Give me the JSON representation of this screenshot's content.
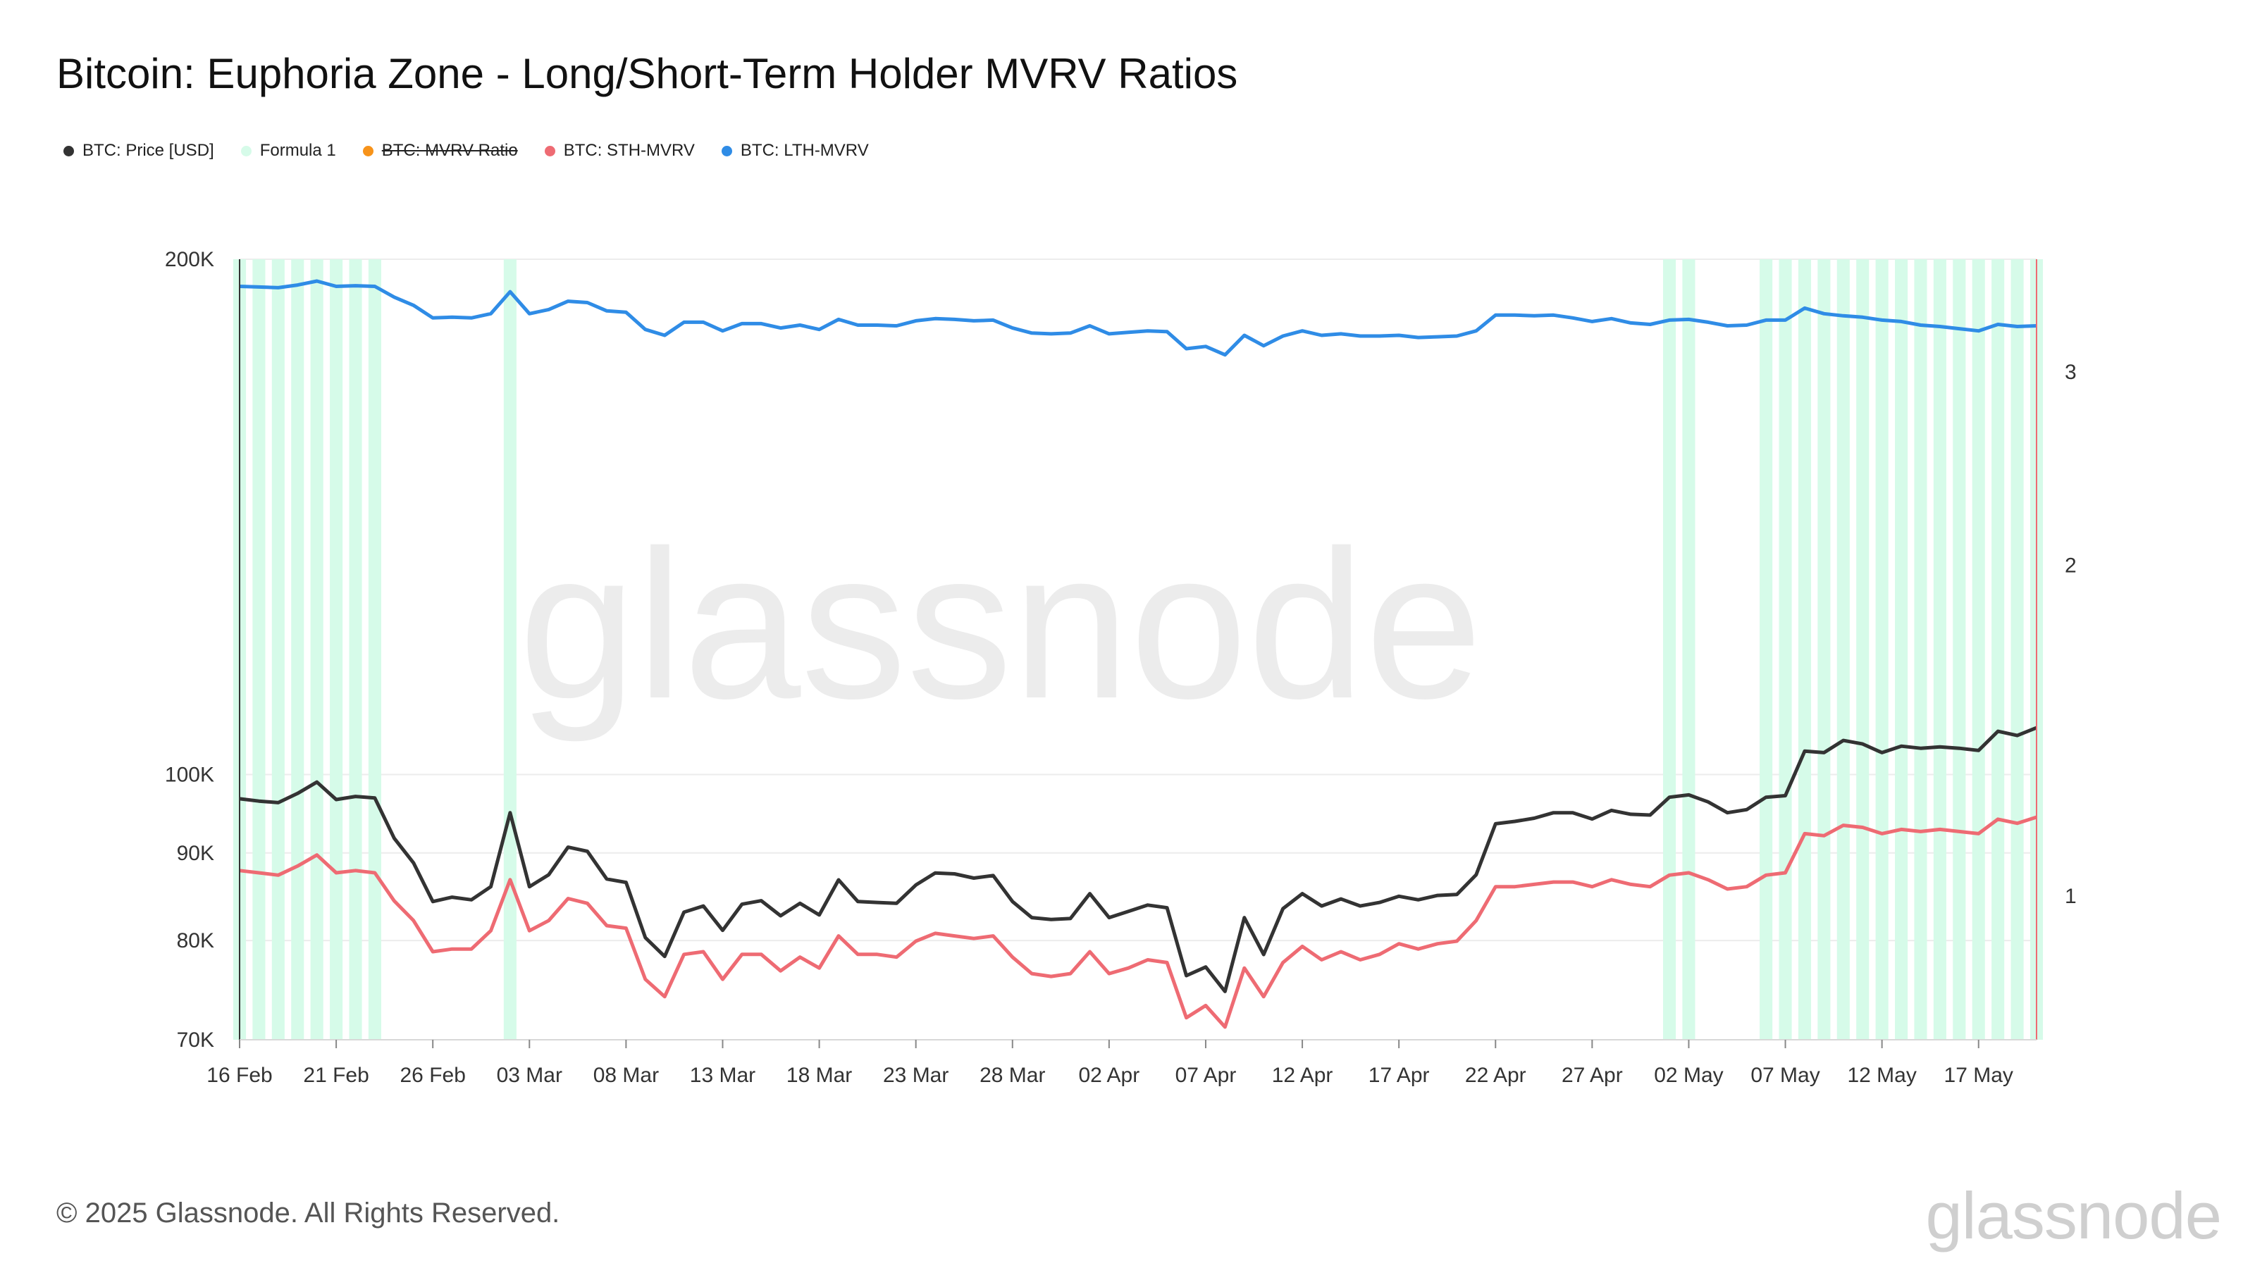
{
  "title": "Bitcoin: Euphoria Zone - Long/Short-Term Holder MVRV Ratios",
  "legend": [
    {
      "label": "BTC: Price [USD]",
      "color": "#333333",
      "struck": false
    },
    {
      "label": "Formula 1",
      "color": "#d6fbe9",
      "struck": false
    },
    {
      "label": "BTC: MVRV Ratio",
      "color": "#f7931a",
      "struck": true
    },
    {
      "label": "BTC: STH-MVRV",
      "color": "#ee6b73",
      "struck": false
    },
    {
      "label": "BTC: LTH-MVRV",
      "color": "#2f8ce6",
      "struck": false
    }
  ],
  "watermark": "glassnode",
  "footer": "© 2025 Glassnode. All Rights Reserved.",
  "brand": "glassnode",
  "chart_data": {
    "type": "line",
    "x_tick_labels": [
      "16 Feb",
      "21 Feb",
      "26 Feb",
      "03 Mar",
      "08 Mar",
      "13 Mar",
      "18 Mar",
      "23 Mar",
      "28 Mar",
      "02 Apr",
      "07 Apr",
      "12 Apr",
      "17 Apr",
      "22 Apr",
      "27 Apr",
      "02 May",
      "07 May",
      "12 May",
      "17 May"
    ],
    "x_tick_day_index": [
      0,
      5,
      10,
      15,
      20,
      25,
      30,
      35,
      40,
      45,
      50,
      55,
      60,
      65,
      70,
      75,
      80,
      85,
      90
    ],
    "x_range_days": [
      0,
      93
    ],
    "left_axis": {
      "scale": "log",
      "range": [
        70000,
        200000
      ],
      "ticks": [
        70000,
        80000,
        90000,
        100000,
        200000
      ],
      "tick_labels": [
        "70K",
        "80K",
        "90K",
        "100K",
        "200K"
      ]
    },
    "right_axis": {
      "scale": "log",
      "range": [
        0.74,
        3.8
      ],
      "ticks": [
        1,
        2,
        3
      ],
      "tick_labels": [
        "1",
        "2",
        "3"
      ]
    },
    "series": [
      {
        "name": "BTC: Price [USD]",
        "axis": "left",
        "color": "#333333",
        "values": [
          96800,
          96500,
          96300,
          97500,
          99000,
          96700,
          97100,
          96900,
          91800,
          88800,
          84300,
          84800,
          84500,
          86000,
          95000,
          86000,
          87400,
          90700,
          90200,
          86900,
          86500,
          80300,
          78300,
          83100,
          83800,
          81100,
          84000,
          84400,
          82700,
          84100,
          82800,
          86800,
          84300,
          84200,
          84100,
          86200,
          87600,
          87500,
          87000,
          87300,
          84300,
          82500,
          82300,
          82400,
          85200,
          82500,
          83200,
          83900,
          83600,
          76300,
          77200,
          74700,
          82500,
          78500,
          83500,
          85200,
          83800,
          84600,
          83800,
          84200,
          84900,
          84500,
          85000,
          85100,
          87400,
          93600,
          93900,
          94300,
          95000,
          95000,
          94200,
          95300,
          94800,
          94700,
          97000,
          97300,
          96400,
          95000,
          95400,
          97000,
          97200,
          103200,
          103000,
          104700,
          104200,
          103000,
          103900,
          103600,
          103800,
          103600,
          103300,
          106000,
          105400,
          106500
        ]
      },
      {
        "name": "BTC: STH-MVRV",
        "axis": "right",
        "color": "#ee6b73",
        "values": [
          1.055,
          1.05,
          1.045,
          1.065,
          1.09,
          1.05,
          1.055,
          1.05,
          0.99,
          0.95,
          0.89,
          0.895,
          0.895,
          0.93,
          1.035,
          0.93,
          0.95,
          0.995,
          0.985,
          0.94,
          0.935,
          0.84,
          0.81,
          0.885,
          0.89,
          0.84,
          0.885,
          0.885,
          0.855,
          0.88,
          0.86,
          0.92,
          0.885,
          0.885,
          0.88,
          0.91,
          0.925,
          0.92,
          0.915,
          0.92,
          0.88,
          0.85,
          0.845,
          0.85,
          0.89,
          0.85,
          0.86,
          0.875,
          0.87,
          0.775,
          0.795,
          0.76,
          0.86,
          0.81,
          0.87,
          0.9,
          0.875,
          0.89,
          0.875,
          0.885,
          0.905,
          0.895,
          0.905,
          0.91,
          0.95,
          1.02,
          1.02,
          1.025,
          1.03,
          1.03,
          1.02,
          1.035,
          1.025,
          1.02,
          1.045,
          1.05,
          1.035,
          1.015,
          1.02,
          1.045,
          1.05,
          1.14,
          1.135,
          1.16,
          1.155,
          1.14,
          1.15,
          1.145,
          1.15,
          1.145,
          1.14,
          1.175,
          1.165,
          1.18
        ]
      },
      {
        "name": "BTC: LTH-MVRV",
        "axis": "right",
        "color": "#2f8ce6",
        "values": [
          3.59,
          3.585,
          3.58,
          3.6,
          3.63,
          3.59,
          3.595,
          3.59,
          3.51,
          3.45,
          3.36,
          3.365,
          3.36,
          3.39,
          3.55,
          3.39,
          3.42,
          3.48,
          3.47,
          3.41,
          3.4,
          3.28,
          3.24,
          3.33,
          3.33,
          3.27,
          3.32,
          3.32,
          3.29,
          3.31,
          3.28,
          3.35,
          3.31,
          3.31,
          3.305,
          3.34,
          3.355,
          3.35,
          3.34,
          3.345,
          3.29,
          3.255,
          3.25,
          3.255,
          3.305,
          3.25,
          3.26,
          3.27,
          3.265,
          3.15,
          3.165,
          3.11,
          3.24,
          3.17,
          3.235,
          3.27,
          3.24,
          3.25,
          3.235,
          3.235,
          3.24,
          3.225,
          3.23,
          3.235,
          3.27,
          3.38,
          3.38,
          3.375,
          3.38,
          3.36,
          3.335,
          3.355,
          3.325,
          3.315,
          3.345,
          3.35,
          3.33,
          3.305,
          3.31,
          3.345,
          3.345,
          3.43,
          3.39,
          3.375,
          3.365,
          3.345,
          3.335,
          3.31,
          3.3,
          3.285,
          3.27,
          3.315,
          3.3,
          3.305
        ]
      },
      {
        "name": "Formula 1",
        "type": "bar",
        "axis": "none",
        "color": "#d6fbe9",
        "values": [
          1,
          1,
          1,
          1,
          1,
          1,
          1,
          1,
          0,
          0,
          0,
          0,
          0,
          0,
          1,
          0,
          0,
          0,
          0,
          0,
          0,
          0,
          0,
          0,
          0,
          0,
          0,
          0,
          0,
          0,
          0,
          0,
          0,
          0,
          0,
          0,
          0,
          0,
          0,
          0,
          0,
          0,
          0,
          0,
          0,
          0,
          0,
          0,
          0,
          0,
          0,
          0,
          0,
          0,
          0,
          0,
          0,
          0,
          0,
          0,
          0,
          0,
          0,
          0,
          0,
          0,
          0,
          0,
          0,
          0,
          0,
          0,
          0,
          0,
          1,
          1,
          0,
          0,
          0,
          1,
          1,
          1,
          1,
          1,
          1,
          1,
          1,
          1,
          1,
          1,
          1,
          1,
          1,
          1
        ]
      }
    ]
  }
}
